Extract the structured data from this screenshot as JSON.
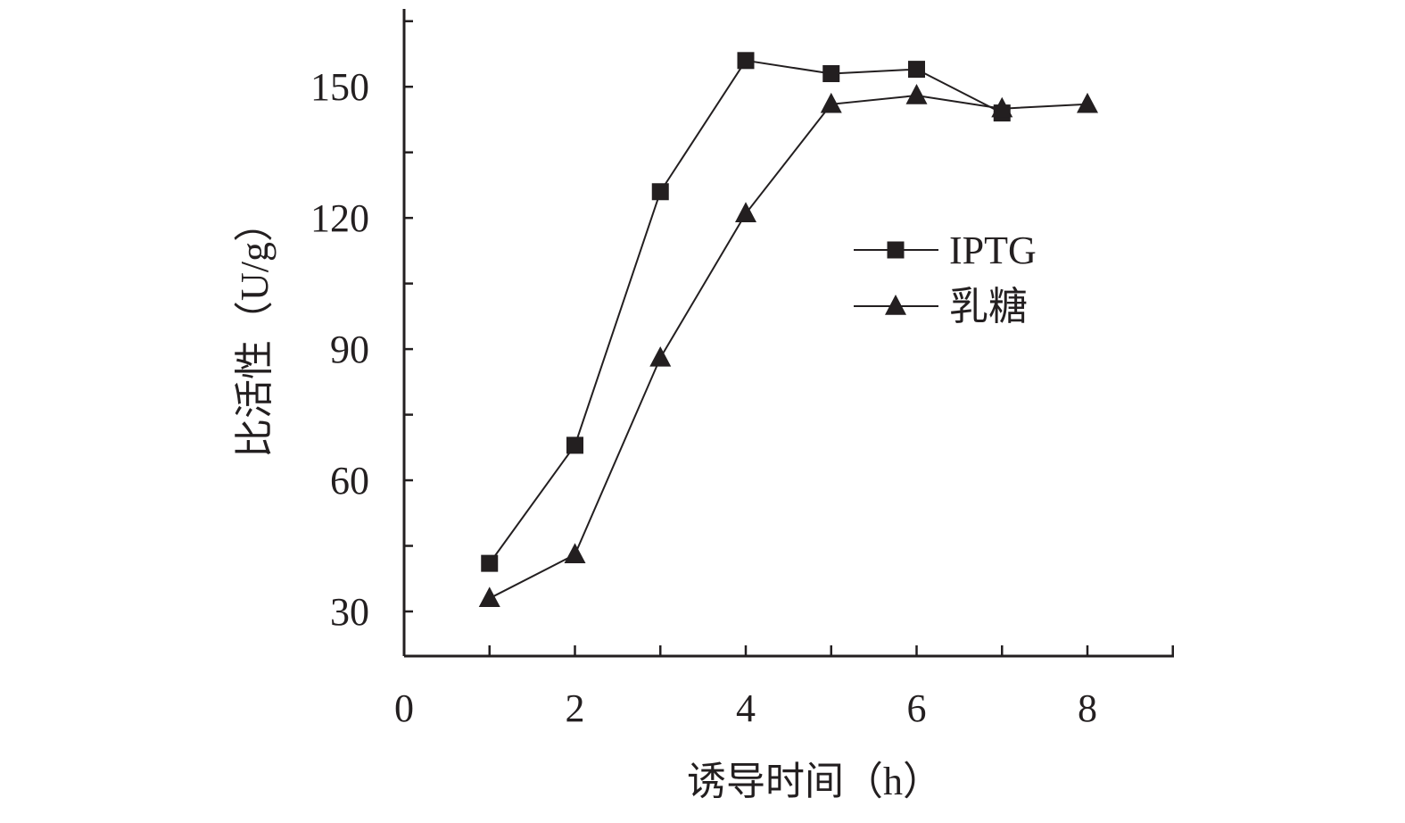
{
  "chart_data": {
    "type": "line",
    "xlabel": "诱导时间（h）",
    "ylabel": "比活性（U/g）",
    "x": [
      1,
      2,
      3,
      4,
      5,
      6,
      7,
      8
    ],
    "xlim": [
      0,
      9
    ],
    "ylim": [
      20,
      170
    ],
    "xticks": [
      0,
      2,
      4,
      6,
      8
    ],
    "xticks_minor": [
      1,
      3,
      5,
      7,
      9
    ],
    "yticks": [
      30,
      60,
      90,
      120,
      150
    ],
    "yticks_minor": [
      45,
      75,
      105,
      135,
      165
    ],
    "grid": false,
    "legend_position": "center-right",
    "series": [
      {
        "name": "IPTG",
        "marker": "square",
        "color": "#231f20",
        "x": [
          1,
          2,
          3,
          4,
          5,
          6,
          7
        ],
        "values": [
          41,
          68,
          126,
          156,
          153,
          154,
          144
        ]
      },
      {
        "name": "乳糖",
        "marker": "triangle",
        "color": "#231f20",
        "x": [
          1,
          2,
          3,
          4,
          5,
          6,
          7,
          8
        ],
        "values": [
          33,
          43,
          88,
          121,
          146,
          148,
          145,
          146
        ]
      }
    ]
  }
}
